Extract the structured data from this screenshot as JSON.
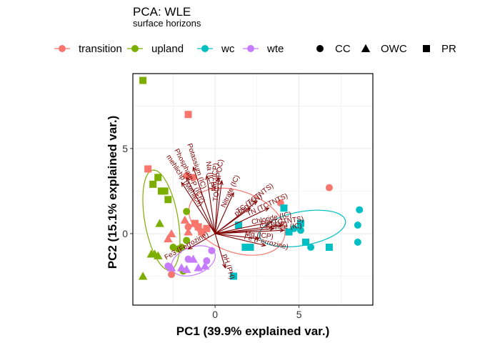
{
  "chart_data": {
    "type": "scatter",
    "title": "PCA: WLE",
    "subtitle": "surface horizons",
    "xlabel": "PC1 (39.9% explained var.)",
    "ylabel": "PC2 (15.1% explained var.)",
    "xlim": [
      -4.9,
      9.4
    ],
    "ylim": [
      -4.2,
      9.4
    ],
    "xticks": [
      0,
      5
    ],
    "yticks": [
      0,
      5
    ],
    "xtick_labels": [
      "0",
      "5"
    ],
    "ytick_labels": [
      "0",
      "5"
    ],
    "grid": true,
    "legend_position": "top",
    "color_legend": [
      {
        "label": "transition",
        "color": "#F8766D"
      },
      {
        "label": "upland",
        "color": "#7CAE00"
      },
      {
        "label": "wc",
        "color": "#00BFC4"
      },
      {
        "label": "wte",
        "color": "#C77CFF"
      }
    ],
    "shape_legend": [
      {
        "label": "CC",
        "shape": "circle"
      },
      {
        "label": "OWC",
        "shape": "triangle"
      },
      {
        "label": "PR",
        "shape": "square"
      }
    ],
    "series": [
      {
        "name": "transition",
        "color": "#F8766D",
        "points": [
          {
            "x": -4.0,
            "y": 3.8,
            "shape": "square"
          },
          {
            "x": -1.6,
            "y": 7.0,
            "shape": "square"
          },
          {
            "x": -1.0,
            "y": 0.4,
            "shape": "square"
          },
          {
            "x": -1.2,
            "y": 0.6,
            "shape": "square"
          },
          {
            "x": -0.8,
            "y": 0.1,
            "shape": "square"
          },
          {
            "x": -0.5,
            "y": 0.3,
            "shape": "square"
          },
          {
            "x": -2.6,
            "y": 0.0,
            "shape": "triangle"
          },
          {
            "x": -2.8,
            "y": -0.3,
            "shape": "triangle"
          },
          {
            "x": -1.8,
            "y": 0.8,
            "shape": "triangle"
          },
          {
            "x": -1.6,
            "y": 0.1,
            "shape": "triangle"
          },
          {
            "x": -2.6,
            "y": -2.4,
            "shape": "circle"
          },
          {
            "x": -1.7,
            "y": 3.4,
            "shape": "circle"
          },
          {
            "x": -1.3,
            "y": 3.3,
            "shape": "circle"
          },
          {
            "x": -1.6,
            "y": 0.4,
            "shape": "circle"
          },
          {
            "x": 3.9,
            "y": 1.8,
            "shape": "circle"
          },
          {
            "x": 6.8,
            "y": 2.7,
            "shape": "circle"
          }
        ]
      },
      {
        "name": "upland",
        "color": "#7CAE00",
        "points": [
          {
            "x": -4.3,
            "y": 9.0,
            "shape": "square"
          },
          {
            "x": -3.7,
            "y": 2.9,
            "shape": "square"
          },
          {
            "x": -3.4,
            "y": 3.3,
            "shape": "square"
          },
          {
            "x": -3.2,
            "y": 2.5,
            "shape": "square"
          },
          {
            "x": -3.0,
            "y": 2.5,
            "shape": "square"
          },
          {
            "x": -2.8,
            "y": 2.0,
            "shape": "square"
          },
          {
            "x": -4.3,
            "y": -2.5,
            "shape": "triangle"
          },
          {
            "x": -3.8,
            "y": -1.2,
            "shape": "triangle"
          },
          {
            "x": -3.6,
            "y": -1.2,
            "shape": "triangle"
          },
          {
            "x": -3.4,
            "y": -1.3,
            "shape": "triangle"
          },
          {
            "x": -3.3,
            "y": 0.6,
            "shape": "triangle"
          },
          {
            "x": -2.5,
            "y": -0.8,
            "shape": "circle"
          },
          {
            "x": -2.2,
            "y": -0.9,
            "shape": "circle"
          },
          {
            "x": -2.0,
            "y": -0.8,
            "shape": "circle"
          },
          {
            "x": -1.7,
            "y": 1.3,
            "shape": "circle"
          },
          {
            "x": -1.7,
            "y": -0.4,
            "shape": "circle"
          },
          {
            "x": -1.9,
            "y": -2.2,
            "shape": "circle"
          }
        ]
      },
      {
        "name": "wc",
        "color": "#00BFC4",
        "points": [
          {
            "x": 1.1,
            "y": -2.5,
            "shape": "square"
          },
          {
            "x": 1.4,
            "y": 0.5,
            "shape": "square"
          },
          {
            "x": 1.8,
            "y": -0.8,
            "shape": "square"
          },
          {
            "x": 2.1,
            "y": -0.8,
            "shape": "square"
          },
          {
            "x": 4.1,
            "y": 1.5,
            "shape": "square"
          },
          {
            "x": 4.4,
            "y": 0.1,
            "shape": "square"
          },
          {
            "x": 5.1,
            "y": 0.6,
            "shape": "square"
          },
          {
            "x": 5.4,
            "y": -0.5,
            "shape": "square"
          },
          {
            "x": 6.8,
            "y": -0.8,
            "shape": "square"
          },
          {
            "x": 4.7,
            "y": 0.3,
            "shape": "circle"
          },
          {
            "x": 5.7,
            "y": -0.8,
            "shape": "circle"
          },
          {
            "x": 5.1,
            "y": 0.2,
            "shape": "circle"
          },
          {
            "x": 8.6,
            "y": 1.4,
            "shape": "circle"
          },
          {
            "x": 8.5,
            "y": 0.5,
            "shape": "circle"
          },
          {
            "x": 8.5,
            "y": -0.5,
            "shape": "circle"
          }
        ]
      },
      {
        "name": "wte",
        "color": "#C77CFF",
        "points": [
          {
            "x": -2.6,
            "y": -2.0,
            "shape": "triangle"
          },
          {
            "x": -2.0,
            "y": -2.0,
            "shape": "triangle"
          },
          {
            "x": -1.7,
            "y": -2.1,
            "shape": "triangle"
          },
          {
            "x": -1.3,
            "y": -1.5,
            "shape": "triangle"
          },
          {
            "x": -1.0,
            "y": -2.0,
            "shape": "triangle"
          },
          {
            "x": -0.6,
            "y": -1.9,
            "shape": "triangle"
          },
          {
            "x": -0.2,
            "y": -1.0,
            "shape": "circle"
          },
          {
            "x": -0.5,
            "y": -1.6,
            "shape": "circle"
          },
          {
            "x": -1.6,
            "y": -1.5,
            "shape": "circle"
          },
          {
            "x": -2.8,
            "y": -1.9,
            "shape": "circle"
          }
        ]
      }
    ],
    "ellipses": [
      {
        "group": "transition",
        "color": "#F8766D",
        "cx": 1.3,
        "cy": 0.7,
        "rx": 4.8,
        "ry": 2.9,
        "angle_deg": -20
      },
      {
        "group": "upland",
        "color": "#7CAE00",
        "cx": -3.2,
        "cy": 0.8,
        "rx": 1.6,
        "ry": 4.8,
        "angle_deg": 10
      },
      {
        "group": "wc",
        "color": "#00BFC4",
        "cx": 5.2,
        "cy": 0.3,
        "rx": 4.2,
        "ry": 1.6,
        "angle_deg": 10
      },
      {
        "group": "wte",
        "color": "#C77CFF",
        "cx": -1.3,
        "cy": -1.6,
        "rx": 2.2,
        "ry": 1.3,
        "angle_deg": 20
      }
    ],
    "loadings": [
      {
        "label": "Potassium (IC)",
        "x": -1.3,
        "y": 3.9
      },
      {
        "label": "Phosphate-P (ICP)",
        "x": -1.7,
        "y": 3.3
      },
      {
        "label": "mehlichp (Mehlich)",
        "x": -2.0,
        "y": 3.0
      },
      {
        "label": "Mn (ICP)",
        "x": 0.2,
        "y": 3.3
      },
      {
        "label": "Na (ICP)",
        "x": -0.5,
        "y": 3.4
      },
      {
        "label": "TOC (NPOC)",
        "x": 0.4,
        "y": 3.1
      },
      {
        "label": "Nitrate (IC)",
        "x": 1.1,
        "y": 2.4
      },
      {
        "label": "TC (TCTNTS)",
        "x": 2.5,
        "y": 1.9
      },
      {
        "label": "TN (TCTNTS)",
        "x": 3.2,
        "y": 1.5
      },
      {
        "label": "posn (SN)",
        "x": 2.1,
        "y": 1.5
      },
      {
        "label": "Chloride (IC)",
        "x": 3.4,
        "y": 0.7
      },
      {
        "label": "TS (TCTNTS)",
        "x": 4.0,
        "y": 0.5
      },
      {
        "label": "Ca (ICP)",
        "x": 3.5,
        "y": 0.3
      },
      {
        "label": "Sulfate (IC)",
        "x": 4.1,
        "y": 0.2
      },
      {
        "label": "Mg (ICP)",
        "x": 2.6,
        "y": -0.3
      },
      {
        "label": "Fe (Ferrozine)",
        "x": 3.0,
        "y": -0.7
      },
      {
        "label": "pH (PH)",
        "x": 0.6,
        "y": -2.0
      },
      {
        "label": "Fe3 (Ferrozine)",
        "x": -1.6,
        "y": -0.9
      }
    ]
  }
}
